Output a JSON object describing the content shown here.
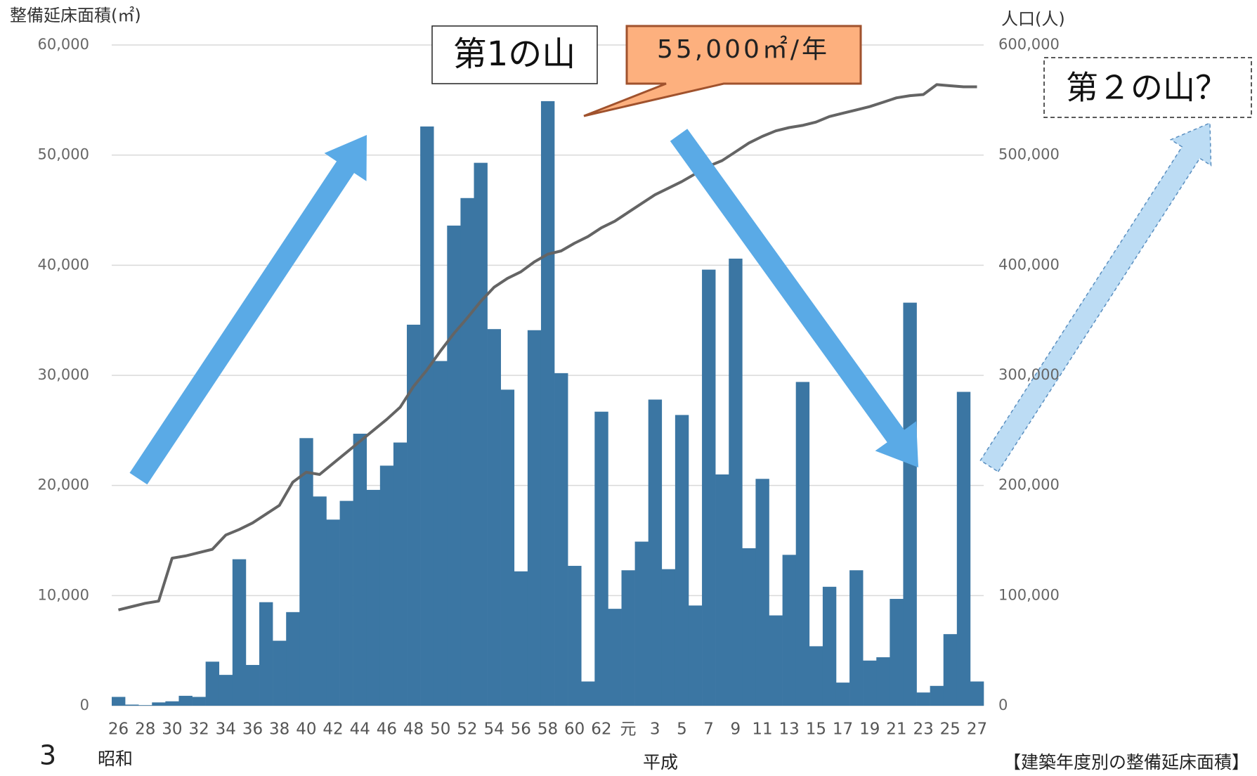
{
  "chart_data": {
    "type": "bar",
    "y_axis_title": "整備延床面積(㎡)",
    "y2_axis_title": "人口(人)",
    "annotations": [
      "第1の山",
      "55,000㎡/年",
      "第２の山？"
    ],
    "era_labels": [
      "昭和",
      "平成"
    ],
    "page_number": "3",
    "caption": "【建築年度別の整備延床面積】",
    "categories": [
      "26",
      null,
      "28",
      null,
      "30",
      null,
      "32",
      null,
      "34",
      null,
      "36",
      null,
      "38",
      null,
      "40",
      null,
      "42",
      null,
      "44",
      null,
      "46",
      null,
      "48",
      null,
      "50",
      null,
      "52",
      null,
      "54",
      null,
      "56",
      null,
      "58",
      null,
      "60",
      null,
      "62",
      null,
      "元",
      null,
      "3",
      null,
      "5",
      null,
      "7",
      null,
      "9",
      null,
      "11",
      null,
      "13",
      null,
      "15",
      null,
      "17",
      null,
      "19",
      null,
      "21",
      null,
      "23",
      null,
      "25",
      null,
      "27"
    ],
    "series": [
      {
        "color": "#3b76a3",
        "values": [
          800,
          100,
          50,
          300,
          400,
          900,
          800,
          4000,
          2800,
          13300,
          3700,
          9400,
          5900,
          8500,
          24300,
          19000,
          16900,
          18600,
          24700,
          19600,
          21800,
          23900,
          34600,
          52600,
          31300,
          43600,
          46100,
          49300,
          34200,
          28700,
          12200,
          34100,
          54900,
          30200,
          12700,
          2200,
          26700,
          8800,
          12300,
          14900,
          27800,
          12400,
          26400,
          9100,
          39600,
          21000,
          40600,
          14300,
          20600,
          8200,
          13700,
          29400,
          5400,
          10800,
          2100,
          12300,
          4100,
          4400,
          9700,
          36600,
          1200,
          1800,
          6500,
          28500,
          2200
        ]
      },
      {
        "type": "line",
        "axis": "y2",
        "color": "#646464",
        "values": [
          87000,
          90000,
          93000,
          95000,
          134000,
          136000,
          139000,
          142000,
          155000,
          160000,
          166000,
          174000,
          182000,
          203000,
          212000,
          210000,
          220000,
          230000,
          240000,
          250000,
          260000,
          271000,
          290000,
          305000,
          322000,
          338000,
          352000,
          367000,
          380000,
          388000,
          394000,
          403000,
          410000,
          413000,
          420000,
          426000,
          434000,
          440000,
          448000,
          456000,
          464000,
          470000,
          476000,
          483000,
          490000,
          495000,
          503000,
          511000,
          517000,
          522000,
          525000,
          527000,
          530000,
          535000,
          538000,
          541000,
          544000,
          548000,
          552000,
          554000,
          555000,
          564000,
          563000,
          562000,
          562000
        ]
      }
    ],
    "ylim": [
      0,
      60000
    ],
    "yticks": [
      0,
      {
        "value": 10000,
        "label": "10,000"
      },
      {
        "value": 20000,
        "label": "20,000"
      },
      {
        "value": 30000,
        "label": "30,000"
      },
      {
        "value": 40000,
        "label": "40,000"
      },
      {
        "value": 50000,
        "label": "50,000"
      },
      {
        "value": 60000,
        "label": "60,000"
      }
    ],
    "y2lim": [
      0,
      600000
    ],
    "y2ticks": [
      0,
      {
        "value": 100000,
        "label": "100,000"
      },
      {
        "value": 200000,
        "label": "200,000"
      },
      {
        "value": 300000,
        "label": "300,000"
      },
      {
        "value": 400000,
        "label": "400,000"
      },
      {
        "value": 500000,
        "label": "500,000"
      },
      {
        "value": 600000,
        "label": "600,000"
      }
    ],
    "grid": true
  }
}
